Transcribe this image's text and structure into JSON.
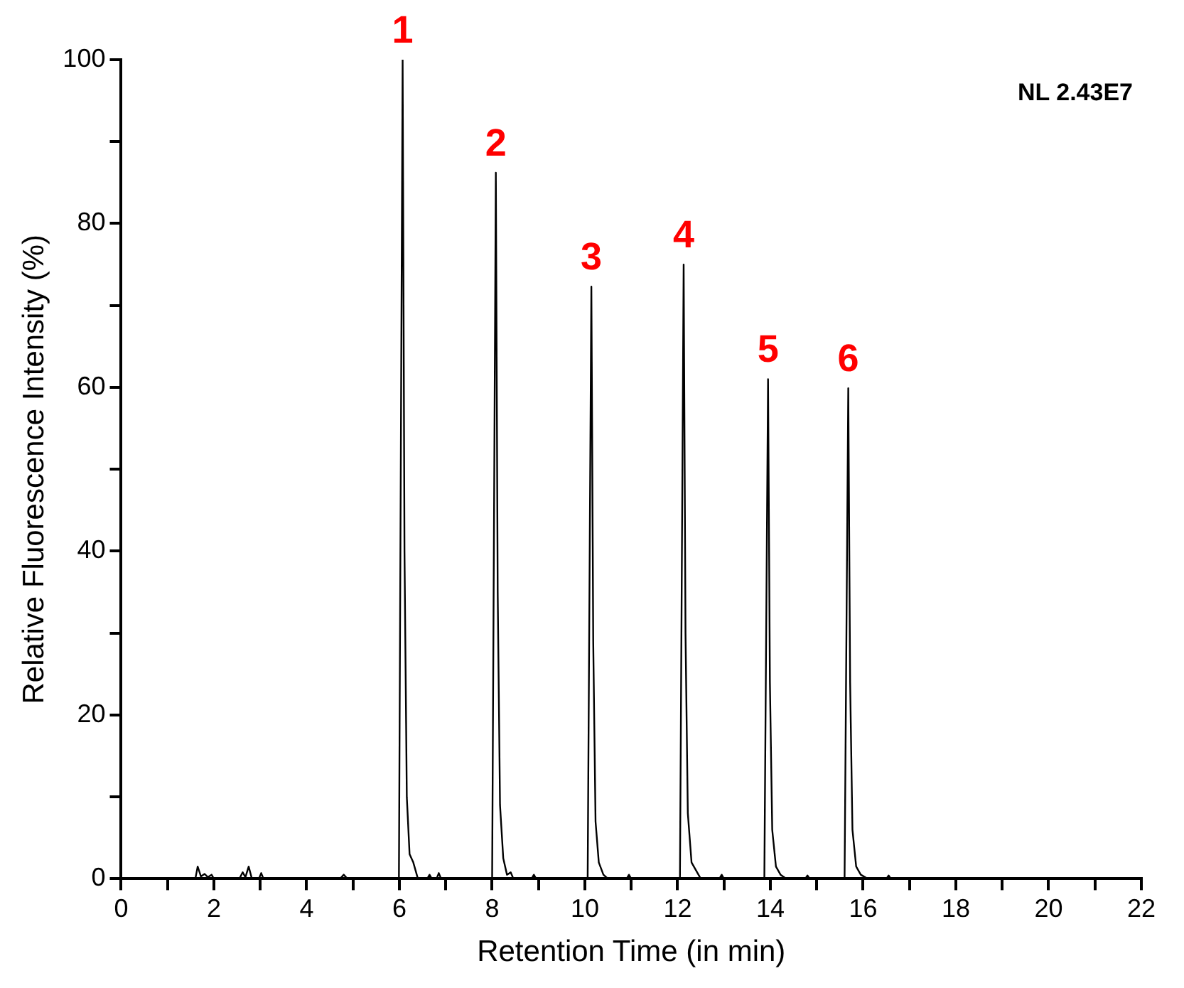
{
  "chart_data": {
    "type": "line",
    "xlabel": "Retention Time (in min)",
    "ylabel": "Relative Fluorescence Intensity (%)",
    "xlim": [
      0,
      22
    ],
    "ylim": [
      0,
      100
    ],
    "marker": "none",
    "line_style": "solid",
    "xticks": [
      0,
      {
        "value": 1,
        "label": null
      },
      2,
      {
        "value": 3,
        "label": null
      },
      4,
      {
        "value": 5,
        "label": null
      },
      6,
      {
        "value": 7,
        "label": null
      },
      8,
      {
        "value": 9,
        "label": null
      },
      10,
      {
        "value": 11,
        "label": null
      },
      12,
      {
        "value": 13,
        "label": null
      },
      14,
      {
        "value": 15,
        "label": null
      },
      16,
      {
        "value": 17,
        "label": null
      },
      18,
      {
        "value": 19,
        "label": null
      },
      20,
      {
        "value": 21,
        "label": null
      },
      22
    ],
    "yticks": [
      0,
      {
        "value": 10,
        "label": null
      },
      20,
      {
        "value": 30,
        "label": null
      },
      40,
      {
        "value": 50,
        "label": null
      },
      60,
      {
        "value": 70,
        "label": null
      },
      80,
      {
        "value": 90,
        "label": null
      },
      100
    ],
    "series": [
      {
        "color": "#000000",
        "x": [
          0,
          1.6,
          1.65,
          1.72,
          1.8,
          1.87,
          1.95,
          2.0,
          2.55,
          2.62,
          2.68,
          2.75,
          2.82,
          2.97,
          3.02,
          3.07,
          4.72,
          4.8,
          4.88,
          5.99,
          6.07,
          6.11,
          6.16,
          6.22,
          6.3,
          6.4,
          6.6,
          6.65,
          6.7,
          6.8,
          6.85,
          6.9,
          8.0,
          8.08,
          8.12,
          8.17,
          8.24,
          8.32,
          8.4,
          8.46,
          8.85,
          8.9,
          8.95,
          10.06,
          10.14,
          10.18,
          10.23,
          10.3,
          10.4,
          10.5,
          10.9,
          10.95,
          11.0,
          12.05,
          12.13,
          12.17,
          12.22,
          12.3,
          12.4,
          12.5,
          12.9,
          12.95,
          13.0,
          13.87,
          13.95,
          13.99,
          14.04,
          14.12,
          14.22,
          14.35,
          14.75,
          14.8,
          14.85,
          15.6,
          15.68,
          15.72,
          15.77,
          15.85,
          15.95,
          16.1,
          16.5,
          16.55,
          16.6,
          22
        ],
        "values": [
          0,
          0,
          1.5,
          0.3,
          0.6,
          0.2,
          0.5,
          0,
          0,
          0.8,
          0.2,
          1.5,
          0,
          0,
          0.7,
          0,
          0,
          0.5,
          0,
          0,
          100,
          40,
          10,
          3,
          2,
          0,
          0,
          0.5,
          0,
          0,
          0.7,
          0,
          0,
          86.2,
          35,
          9,
          2.5,
          0.5,
          0.8,
          0,
          0,
          0.5,
          0,
          0,
          72.3,
          29,
          7,
          2,
          0.5,
          0,
          0,
          0.5,
          0,
          0,
          75,
          30,
          8,
          2,
          1,
          0,
          0,
          0.5,
          0,
          0,
          61,
          24,
          6,
          1.5,
          0.5,
          0,
          0,
          0.4,
          0,
          0,
          59.9,
          24,
          6,
          1.5,
          0.5,
          0,
          0,
          0.4,
          0,
          0
        ]
      }
    ],
    "annotations": [
      {
        "text": "1",
        "x": 6.07,
        "y": 100
      },
      {
        "text": "2",
        "x": 8.08,
        "y": 86.2
      },
      {
        "text": "3",
        "x": 10.14,
        "y": 72.3
      },
      {
        "text": "4",
        "x": 12.13,
        "y": 75
      },
      {
        "text": "5",
        "x": 13.95,
        "y": 61
      },
      {
        "text": "6",
        "x": 15.68,
        "y": 59.9
      },
      "NL 2.43E7"
    ]
  }
}
